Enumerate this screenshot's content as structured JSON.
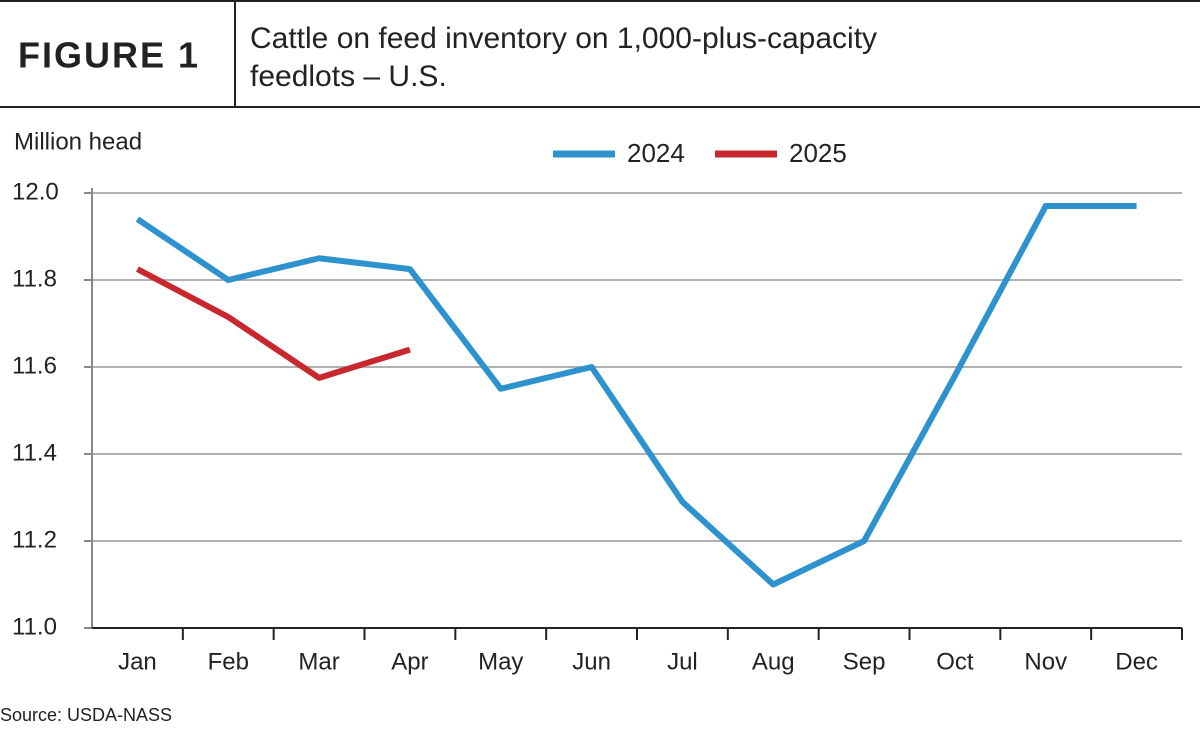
{
  "header": {
    "label": "FIGURE 1",
    "title_lines": [
      "Cattle on feed inventory on 1,000-plus-capacity",
      "feedlots – U.S."
    ]
  },
  "chart_data": {
    "type": "line",
    "y_label": "Million head",
    "categories": [
      "Jan",
      "Feb",
      "Mar",
      "Apr",
      "May",
      "Jun",
      "Jul",
      "Aug",
      "Sep",
      "Oct",
      "Nov",
      "Dec"
    ],
    "series": [
      {
        "name": "2024",
        "color": "#2e92cf",
        "values": [
          11.94,
          11.8,
          11.85,
          11.825,
          11.55,
          11.6,
          11.29,
          11.1,
          11.2,
          11.58,
          11.97,
          11.97
        ]
      },
      {
        "name": "2025",
        "color": "#c8282d",
        "values": [
          11.825,
          11.715,
          11.575,
          11.64,
          null,
          null,
          null,
          null,
          null,
          null,
          null,
          null
        ]
      }
    ],
    "ylim": [
      11.0,
      12.0
    ],
    "yticks": [
      {
        "value": 11.0,
        "label": "11.0"
      },
      11.2,
      11.4,
      11.6,
      11.8,
      {
        "value": 12.0,
        "label": "12.0"
      }
    ],
    "grid": true,
    "legend": "top",
    "source": "Source: USDA-NASS"
  }
}
